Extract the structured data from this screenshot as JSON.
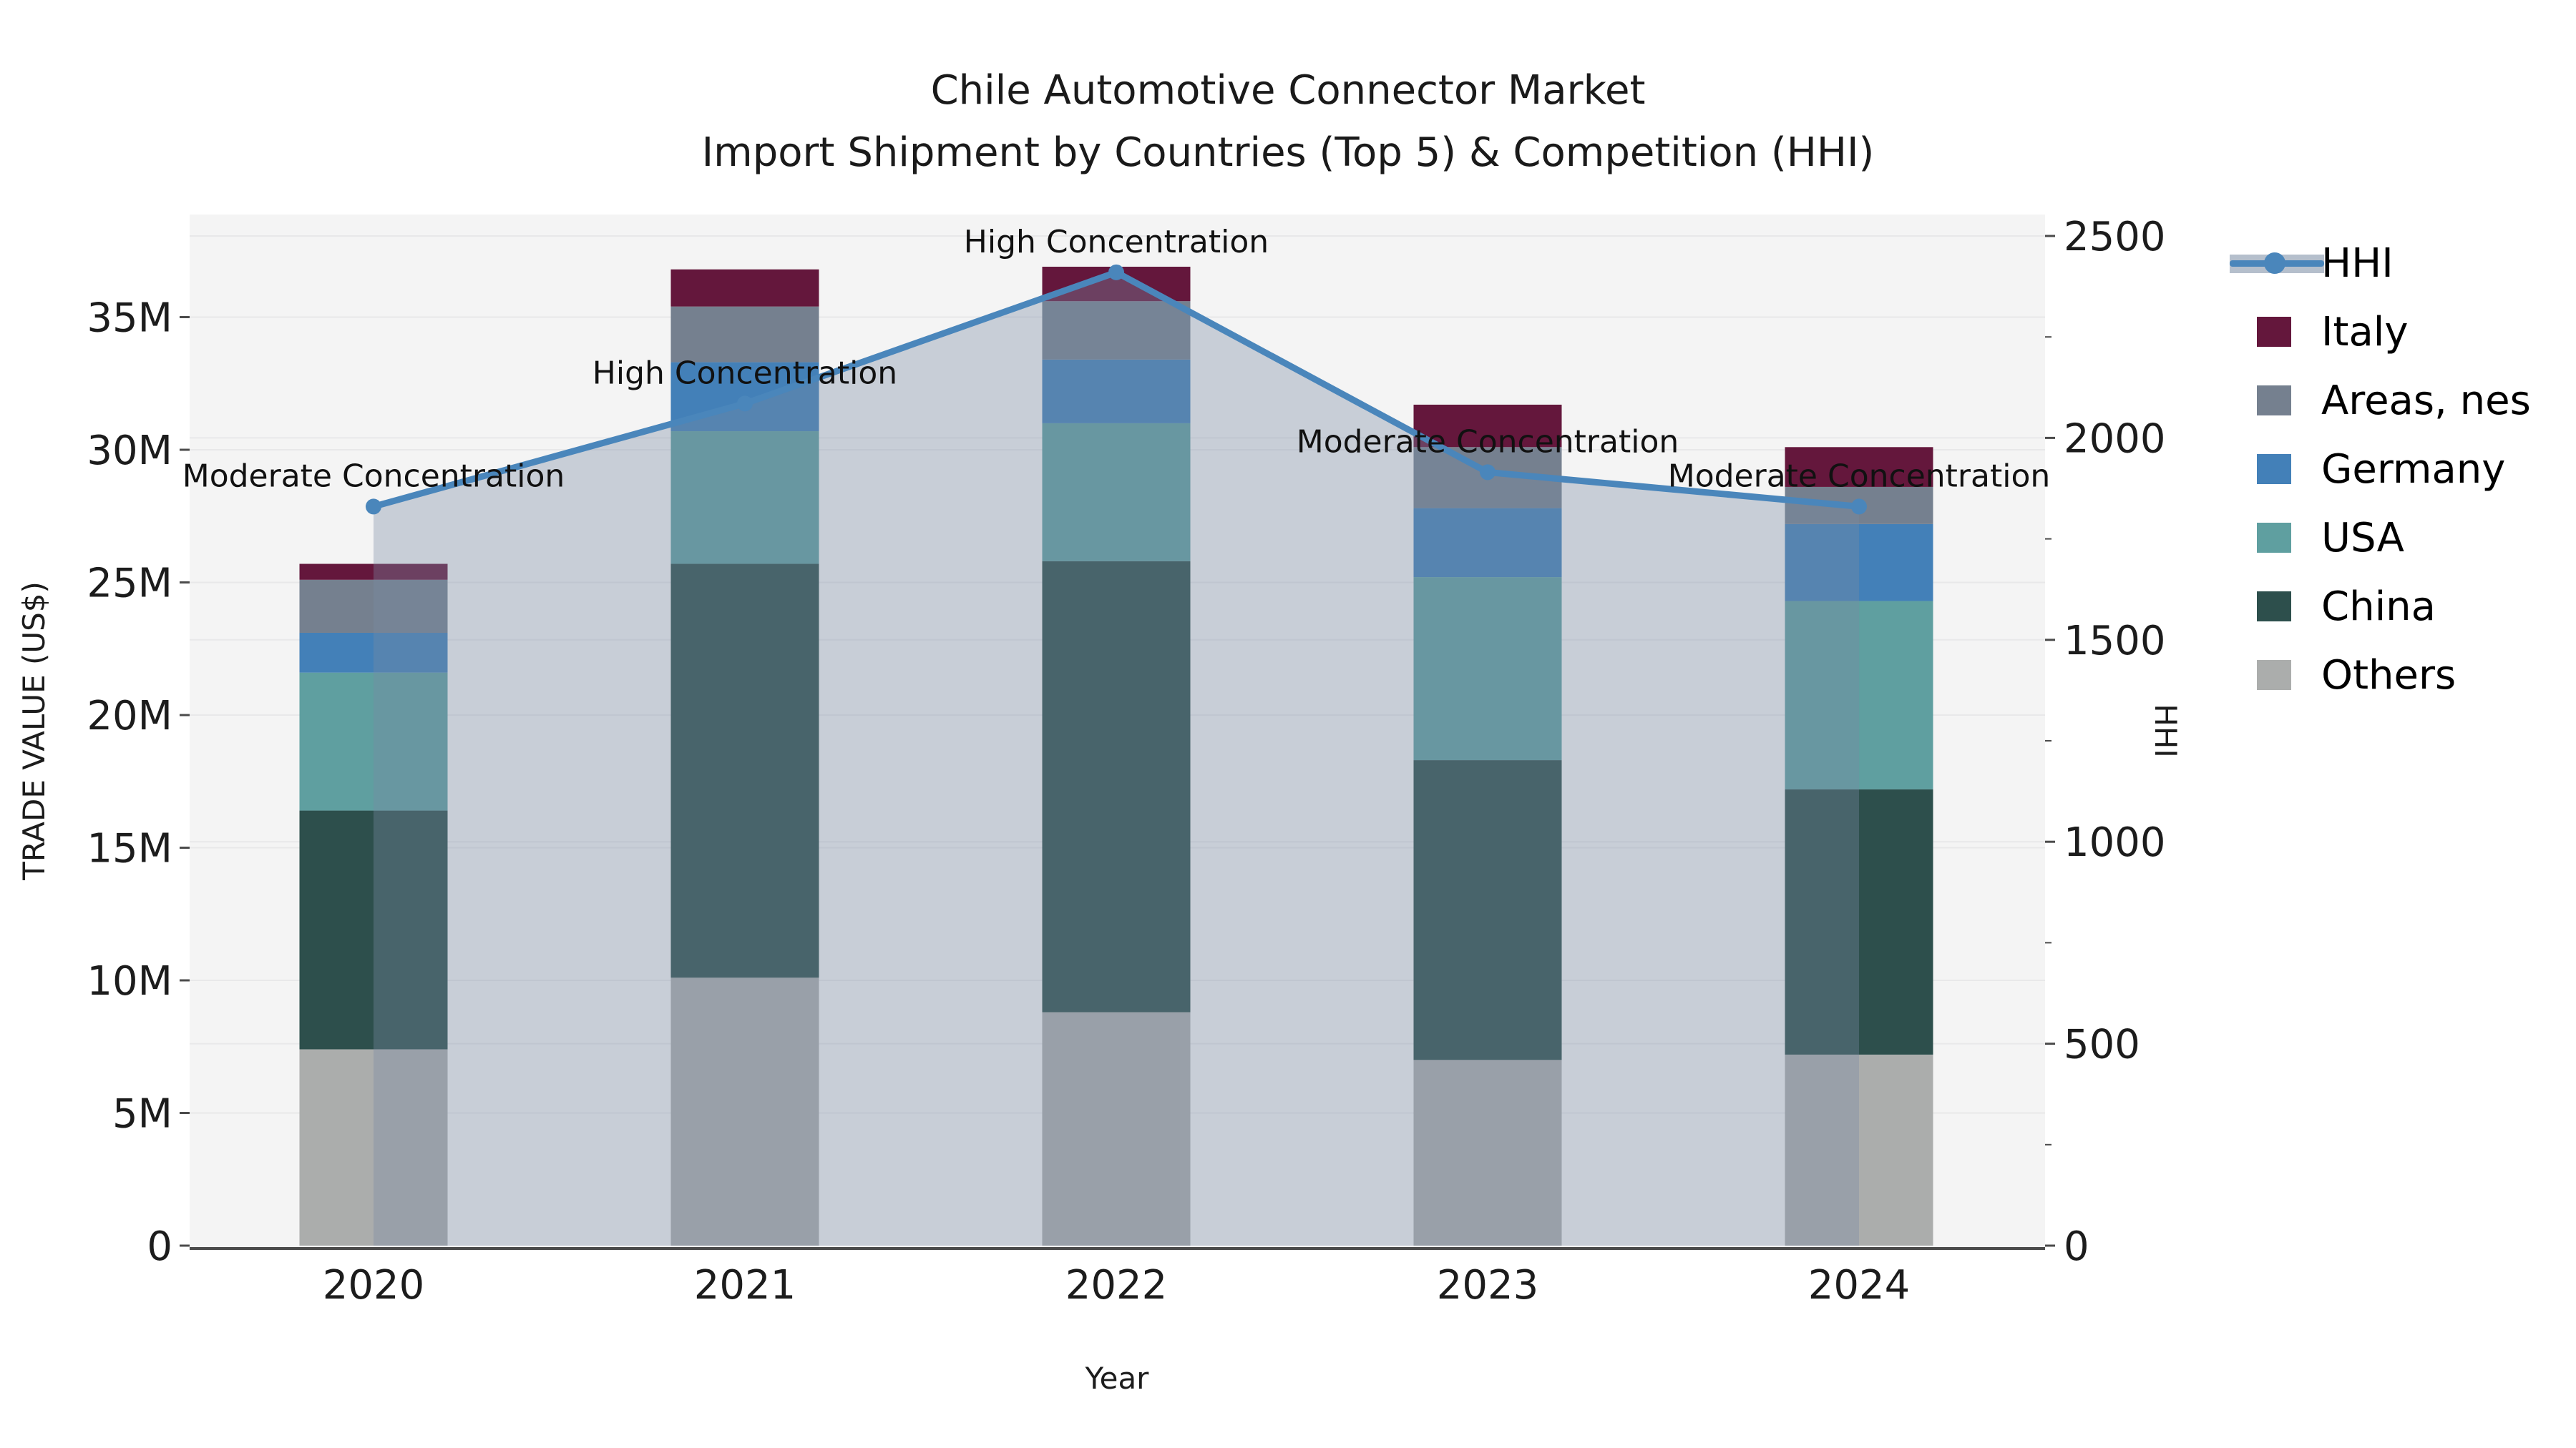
{
  "title": {
    "line1": "Chile Automotive Connector Market",
    "line2": "Import Shipment by Countries (Top 5) & Competition (HHI)"
  },
  "chart_data": {
    "type": "bar",
    "subtype": "stacked-bars-with-line-overlay",
    "categories": [
      "2020",
      "2021",
      "2022",
      "2023",
      "2024"
    ],
    "xlabel": "Year",
    "ylabel_left": "TRADE VALUE (US$)",
    "ylabel_right": "HHI",
    "ylim_left_millions": [
      0,
      38.8
    ],
    "ylim_right": [
      0,
      2553
    ],
    "grid": true,
    "left_ticks": [
      {
        "value": 0,
        "label": "0"
      },
      {
        "value": 5,
        "label": "5M"
      },
      {
        "value": 10,
        "label": "10M"
      },
      {
        "value": 15,
        "label": "15M"
      },
      {
        "value": 20,
        "label": "20M"
      },
      {
        "value": 25,
        "label": "25M"
      },
      {
        "value": 30,
        "label": "30M"
      },
      {
        "value": 35,
        "label": "35M"
      }
    ],
    "right_ticks": [
      {
        "value": 0,
        "label": "0"
      },
      {
        "value": 500,
        "label": "500"
      },
      {
        "value": 1000,
        "label": "1000"
      },
      {
        "value": 1500,
        "label": "1500"
      },
      {
        "value": 2000,
        "label": "2000"
      },
      {
        "value": 2500,
        "label": "2500"
      }
    ],
    "series": [
      {
        "name": "Others",
        "color": "#abadac",
        "values_millions": [
          7.4,
          10.1,
          8.8,
          7.0,
          7.2
        ]
      },
      {
        "name": "China",
        "color": "#2d4f4c",
        "values_millions": [
          9.0,
          15.6,
          17.0,
          11.3,
          10.0
        ]
      },
      {
        "name": "USA",
        "color": "#5f9fa0",
        "values_millions": [
          5.2,
          5.0,
          5.2,
          6.9,
          7.1
        ]
      },
      {
        "name": "Germany",
        "color": "#4380b8",
        "values_millions": [
          1.5,
          2.6,
          2.4,
          2.6,
          2.9
        ]
      },
      {
        "name": "Areas, nes",
        "color": "#75808f",
        "values_millions": [
          2.0,
          2.1,
          2.2,
          2.3,
          1.4
        ]
      },
      {
        "name": "Italy",
        "color": "#64173c",
        "values_millions": [
          0.6,
          1.4,
          1.3,
          1.6,
          1.5
        ]
      }
    ],
    "hhi": {
      "name": "HHI",
      "line_color": "#4a86bb",
      "area_color": "rgba(121,138,163,0.36)",
      "values": [
        1830,
        2085,
        2410,
        1915,
        1830
      ],
      "annotations": [
        "Moderate Concentration",
        "High Concentration",
        "High Concentration",
        "Moderate Concentration",
        "Moderate Concentration"
      ]
    },
    "legend": [
      "HHI",
      "Italy",
      "Areas, nes",
      "Germany",
      "USA",
      "China",
      "Others"
    ],
    "legend_position": "right"
  }
}
